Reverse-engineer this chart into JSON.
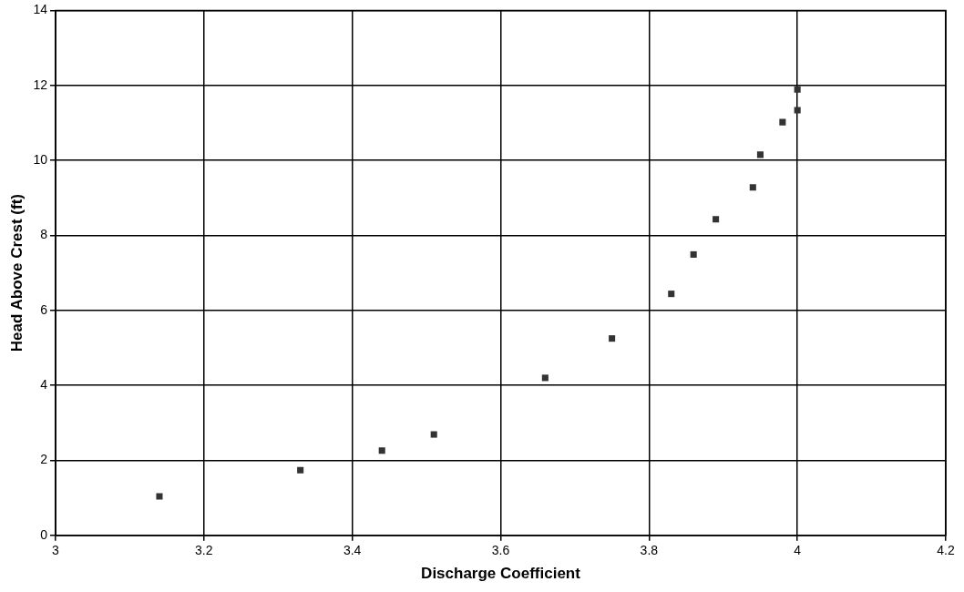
{
  "chart_data": {
    "type": "scatter",
    "xlabel": "Discharge Coefficient",
    "ylabel": "Head Above Crest (ft)",
    "series": [
      {
        "color": "#333333",
        "x": [
          3.14,
          3.33,
          3.44,
          3.51,
          3.66,
          3.75,
          3.83,
          3.86,
          3.89,
          3.94,
          3.95,
          3.98,
          4.0,
          4.0
        ],
        "values": [
          1.04,
          1.74,
          2.26,
          2.69,
          4.2,
          5.25,
          6.44,
          7.49,
          8.43,
          9.28,
          10.15,
          11.02,
          11.34,
          11.89
        ]
      }
    ],
    "xlim": [
      3,
      4.2
    ],
    "xticks": [
      3,
      3.2,
      3.4,
      3.6,
      3.8,
      4,
      4.2
    ],
    "ylim": [
      0,
      14
    ],
    "yticks": [
      0,
      2,
      4,
      6,
      8,
      10,
      12,
      14
    ],
    "grid": true,
    "legend": false,
    "marker": "square"
  }
}
